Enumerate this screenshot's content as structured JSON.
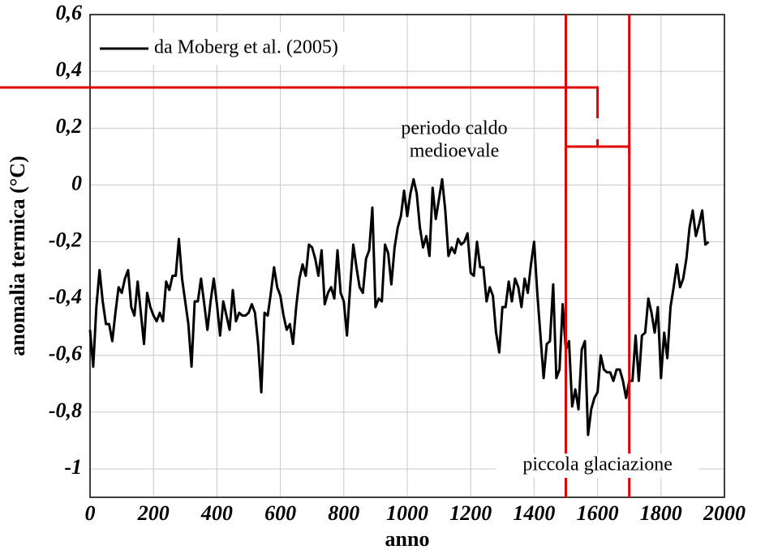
{
  "chart_data": {
    "type": "line",
    "xlabel": "anno",
    "ylabel": "anomalia termica (°C)",
    "xlim": [
      0,
      2000
    ],
    "ylim": [
      -1.1,
      0.6
    ],
    "xticks": [
      0,
      200,
      400,
      600,
      800,
      1000,
      1200,
      1400,
      1600,
      1800,
      2000
    ],
    "yticks": [
      {
        "value": 0.6,
        "label": "0,6"
      },
      {
        "value": 0.4,
        "label": "0,4"
      },
      {
        "value": 0.2,
        "label": "0,2"
      },
      0,
      {
        "value": -0.2,
        "label": "-0,2"
      },
      {
        "value": -0.4,
        "label": "-0,4"
      },
      {
        "value": -0.6,
        "label": "-0,6"
      },
      {
        "value": -0.8,
        "label": "-0,8"
      },
      -1
    ],
    "grid": true,
    "legend": "upper left",
    "x": [
      0,
      10,
      20,
      30,
      40,
      50,
      60,
      70,
      80,
      90,
      100,
      110,
      120,
      130,
      140,
      150,
      160,
      170,
      180,
      190,
      200,
      210,
      220,
      230,
      240,
      250,
      260,
      270,
      280,
      290,
      300,
      310,
      320,
      330,
      340,
      350,
      360,
      370,
      380,
      390,
      400,
      410,
      420,
      430,
      440,
      450,
      460,
      470,
      480,
      490,
      500,
      510,
      520,
      530,
      540,
      550,
      560,
      570,
      580,
      590,
      600,
      610,
      620,
      630,
      640,
      650,
      660,
      670,
      680,
      690,
      700,
      710,
      720,
      730,
      740,
      750,
      760,
      770,
      780,
      790,
      800,
      810,
      820,
      830,
      840,
      850,
      860,
      870,
      880,
      890,
      900,
      910,
      920,
      930,
      940,
      950,
      960,
      970,
      980,
      990,
      1000,
      1010,
      1020,
      1030,
      1040,
      1050,
      1060,
      1070,
      1080,
      1090,
      1100,
      1110,
      1120,
      1130,
      1140,
      1150,
      1160,
      1170,
      1180,
      1190,
      1200,
      1210,
      1220,
      1230,
      1240,
      1250,
      1260,
      1270,
      1280,
      1290,
      1300,
      1310,
      1320,
      1330,
      1340,
      1350,
      1360,
      1370,
      1380,
      1390,
      1400,
      1410,
      1420,
      1430,
      1440,
      1450,
      1460,
      1470,
      1480,
      1490,
      1500,
      1510,
      1520,
      1530,
      1540,
      1550,
      1560,
      1570,
      1580,
      1590,
      1600,
      1610,
      1620,
      1630,
      1640,
      1650,
      1660,
      1670,
      1680,
      1690,
      1700,
      1710,
      1720,
      1730,
      1740,
      1750,
      1760,
      1770,
      1780,
      1790,
      1800,
      1810,
      1820,
      1830,
      1840,
      1850,
      1860,
      1870,
      1880,
      1890,
      1900,
      1910,
      1920,
      1930,
      1940,
      1950
    ],
    "series": [
      {
        "name": "da Moberg et al. (2005)",
        "color": "#000000",
        "values": [
          -0.51,
          -0.64,
          -0.43,
          -0.3,
          -0.41,
          -0.49,
          -0.49,
          -0.55,
          -0.45,
          -0.36,
          -0.38,
          -0.33,
          -0.3,
          -0.43,
          -0.46,
          -0.34,
          -0.45,
          -0.56,
          -0.38,
          -0.43,
          -0.46,
          -0.48,
          -0.45,
          -0.48,
          -0.34,
          -0.37,
          -0.32,
          -0.32,
          -0.19,
          -0.33,
          -0.41,
          -0.49,
          -0.64,
          -0.41,
          -0.41,
          -0.33,
          -0.42,
          -0.51,
          -0.41,
          -0.33,
          -0.42,
          -0.53,
          -0.41,
          -0.46,
          -0.51,
          -0.37,
          -0.48,
          -0.45,
          -0.46,
          -0.46,
          -0.45,
          -0.42,
          -0.45,
          -0.56,
          -0.73,
          -0.45,
          -0.46,
          -0.38,
          -0.29,
          -0.36,
          -0.39,
          -0.46,
          -0.51,
          -0.49,
          -0.56,
          -0.43,
          -0.33,
          -0.28,
          -0.32,
          -0.21,
          -0.22,
          -0.26,
          -0.32,
          -0.23,
          -0.42,
          -0.38,
          -0.36,
          -0.4,
          -0.23,
          -0.38,
          -0.41,
          -0.53,
          -0.36,
          -0.21,
          -0.29,
          -0.36,
          -0.38,
          -0.26,
          -0.23,
          -0.08,
          -0.43,
          -0.4,
          -0.41,
          -0.21,
          -0.24,
          -0.35,
          -0.22,
          -0.15,
          -0.11,
          -0.02,
          -0.11,
          -0.03,
          0.02,
          -0.03,
          -0.15,
          -0.22,
          -0.18,
          -0.25,
          -0.01,
          -0.12,
          -0.05,
          0.02,
          -0.09,
          -0.25,
          -0.22,
          -0.24,
          -0.19,
          -0.21,
          -0.2,
          -0.17,
          -0.31,
          -0.32,
          -0.2,
          -0.29,
          -0.29,
          -0.41,
          -0.36,
          -0.39,
          -0.52,
          -0.59,
          -0.43,
          -0.43,
          -0.34,
          -0.41,
          -0.33,
          -0.36,
          -0.43,
          -0.33,
          -0.38,
          -0.28,
          -0.2,
          -0.38,
          -0.53,
          -0.68,
          -0.56,
          -0.55,
          -0.35,
          -0.68,
          -0.65,
          -0.42,
          -0.58,
          -0.55,
          -0.78,
          -0.72,
          -0.79,
          -0.58,
          -0.55,
          -0.88,
          -0.79,
          -0.75,
          -0.73,
          -0.6,
          -0.65,
          -0.66,
          -0.66,
          -0.69,
          -0.65,
          -0.65,
          -0.69,
          -0.75,
          -0.69,
          -0.69,
          -0.53,
          -0.69,
          -0.53,
          -0.52,
          -0.4,
          -0.45,
          -0.52,
          -0.43,
          -0.68,
          -0.52,
          -0.61,
          -0.43,
          -0.36,
          -0.28,
          -0.36,
          -0.33,
          -0.26,
          -0.15,
          -0.09,
          -0.18,
          -0.14,
          -0.09,
          -0.21,
          -0.2
        ]
      }
    ],
    "annotations": [
      {
        "lines": [
          "periodo caldo",
          "medioevale"
        ]
      },
      {
        "text": "piccola glaciazione",
        "start": 1500,
        "end": 1700,
        "color": "#e00000"
      }
    ]
  }
}
